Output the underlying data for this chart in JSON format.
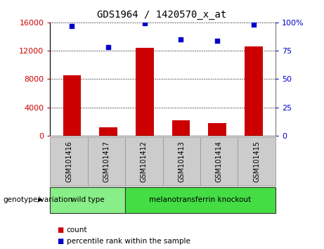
{
  "title": "GDS1964 / 1420570_x_at",
  "categories": [
    "GSM101416",
    "GSM101417",
    "GSM101412",
    "GSM101413",
    "GSM101414",
    "GSM101415"
  ],
  "bar_values": [
    8500,
    1200,
    12400,
    2200,
    1800,
    12600
  ],
  "percentile_values": [
    97,
    78,
    99,
    85,
    84,
    98
  ],
  "bar_color": "#cc0000",
  "dot_color": "#0000cc",
  "ylim_left": [
    0,
    16000
  ],
  "ylim_right": [
    0,
    100
  ],
  "yticks_left": [
    0,
    4000,
    8000,
    12000,
    16000
  ],
  "ytick_labels_left": [
    "0",
    "4000",
    "8000",
    "12000",
    "16000"
  ],
  "yticks_right": [
    0,
    25,
    50,
    75,
    100
  ],
  "ytick_labels_right": [
    "0",
    "25",
    "50",
    "75",
    "100%"
  ],
  "grid_color": "#000000",
  "bar_width": 0.5,
  "groups": [
    {
      "label": "wild type",
      "indices": [
        0,
        1
      ],
      "color": "#88ee88"
    },
    {
      "label": "melanotransferrin knockout",
      "indices": [
        2,
        3,
        4,
        5
      ],
      "color": "#44dd44"
    }
  ],
  "group_label": "genotype/variation",
  "legend_items": [
    {
      "label": "count",
      "color": "#cc0000"
    },
    {
      "label": "percentile rank within the sample",
      "color": "#0000cc"
    }
  ],
  "tick_label_color_left": "#cc0000",
  "tick_label_color_right": "#0000cc",
  "cell_bg": "#cccccc",
  "cell_edge": "#999999",
  "plot_bg": "#ffffff"
}
